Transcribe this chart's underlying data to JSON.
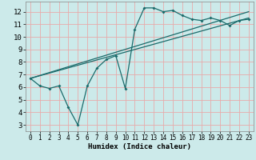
{
  "xlabel": "Humidex (Indice chaleur)",
  "bg_color": "#cceaea",
  "grid_color": "#e8aaaa",
  "line_color": "#1a6b6b",
  "markersize": 2.0,
  "linewidth": 0.9,
  "xlim": [
    -0.5,
    23.5
  ],
  "ylim": [
    2.5,
    12.8
  ],
  "xticks": [
    0,
    1,
    2,
    3,
    4,
    5,
    6,
    7,
    8,
    9,
    10,
    11,
    12,
    13,
    14,
    15,
    16,
    17,
    18,
    19,
    20,
    21,
    22,
    23
  ],
  "yticks": [
    3,
    4,
    5,
    6,
    7,
    8,
    9,
    10,
    11,
    12
  ],
  "line1_x": [
    0,
    1,
    2,
    3,
    4,
    5,
    6,
    7,
    8,
    9,
    10,
    11,
    12,
    13,
    14,
    15,
    16,
    17,
    18,
    19,
    20,
    21,
    22,
    23
  ],
  "line1_y": [
    6.7,
    6.1,
    5.9,
    6.1,
    4.4,
    3.0,
    6.1,
    7.5,
    8.2,
    8.5,
    5.9,
    10.6,
    12.3,
    12.3,
    12.0,
    12.1,
    11.7,
    11.4,
    11.3,
    11.5,
    11.3,
    10.9,
    11.3,
    11.4
  ],
  "line2_x": [
    0,
    23
  ],
  "line2_y": [
    6.7,
    12.0
  ],
  "line3_x": [
    0,
    23
  ],
  "line3_y": [
    6.7,
    11.5
  ],
  "xlabel_fontsize": 6.5,
  "ytick_fontsize": 6.5,
  "xtick_fontsize": 5.5
}
